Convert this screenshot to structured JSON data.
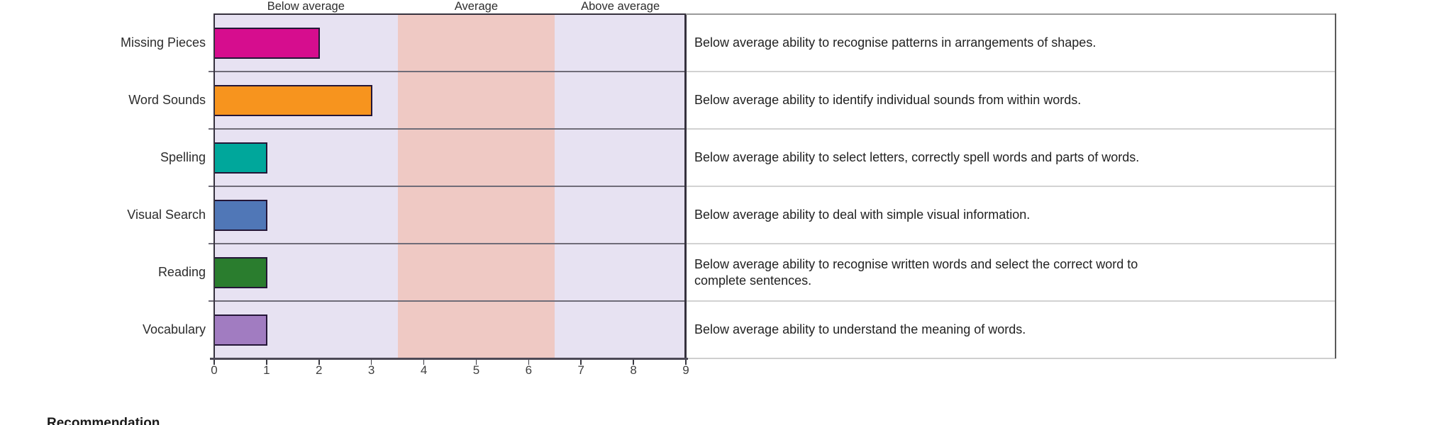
{
  "chart_data": {
    "type": "bar",
    "orientation": "horizontal",
    "xlim": [
      0,
      9
    ],
    "x_ticks": [
      "0",
      "1",
      "2",
      "3",
      "4",
      "5",
      "6",
      "7",
      "8",
      "9"
    ],
    "grid": "row-separators",
    "legend_position": "none",
    "zones": [
      {
        "label": "Below average",
        "from": 0,
        "to": 3.5,
        "color": "#e7e2f2"
      },
      {
        "label": "Average",
        "from": 3.5,
        "to": 6.5,
        "color": "#efc9c4"
      },
      {
        "label": "Above average",
        "from": 6.5,
        "to": 9,
        "color": "#e7e2f2"
      }
    ],
    "rows": [
      {
        "label": "Missing Pieces",
        "value": 2,
        "color": "#d60d8e",
        "description": "Below average ability to recognise patterns in arrangements of shapes."
      },
      {
        "label": "Word Sounds",
        "value": 3,
        "color": "#f7941e",
        "description": "Below average ability to identify individual sounds from within words."
      },
      {
        "label": "Spelling",
        "value": 1,
        "color": "#00a79b",
        "description": "Below average ability to select letters, correctly spell words and parts of words."
      },
      {
        "label": "Visual Search",
        "value": 1,
        "color": "#5077b7",
        "description": "Below average ability to deal with simple visual information."
      },
      {
        "label": "Reading",
        "value": 1,
        "color": "#2a7d2e",
        "description": "Below average ability to recognise written words and select the correct word to\ncomplete sentences."
      },
      {
        "label": "Vocabulary",
        "value": 1,
        "color": "#a17cc1",
        "description": "Below average ability to understand the meaning of words."
      }
    ],
    "bar_border_color": "#241637"
  },
  "footer": {
    "heading": "Recommendation"
  }
}
